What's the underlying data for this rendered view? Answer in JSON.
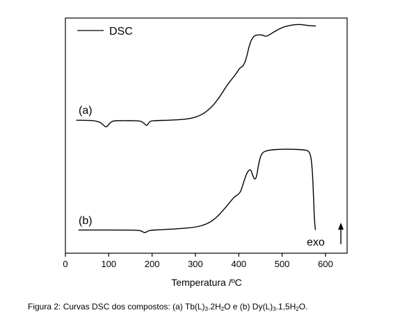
{
  "chart_data": {
    "type": "line",
    "xlabel": "Temperatura /ºC",
    "ylabel": "",
    "xlim": [
      0,
      650
    ],
    "xticks": [
      0,
      100,
      200,
      300,
      400,
      500,
      600
    ],
    "grid": false,
    "legend": {
      "position": "top-left",
      "label": "DSC"
    },
    "y_axis_ticks": "none",
    "series": [
      {
        "curve_label": "(a)",
        "color": "#000000",
        "x": [
          25,
          45,
          65,
          80,
          88,
          93,
          98,
          104,
          112,
          125,
          150,
          175,
          183,
          188,
          191,
          196,
          210,
          240,
          280,
          310,
          335,
          355,
          372,
          385,
          395,
          402,
          407,
          412,
          418,
          423,
          428,
          434,
          440,
          445,
          455,
          463,
          480,
          500,
          520,
          540,
          560,
          578
        ],
        "y": [
          0.5,
          0.5,
          0.7,
          1.5,
          3.2,
          4.4,
          3.6,
          1.6,
          0.8,
          0.75,
          0.7,
          0.9,
          2.6,
          3.6,
          2.4,
          0.9,
          0.7,
          0.45,
          0.0,
          -1.8,
          -6.0,
          -12.0,
          -18.6,
          -22.6,
          -25.6,
          -28.4,
          -29.0,
          -30.3,
          -34.2,
          -39.7,
          -43.5,
          -45.9,
          -46.7,
          -46.8,
          -46.8,
          -45.7,
          -48.3,
          -51.0,
          -52.2,
          -52.7,
          -52.0,
          -51.7
        ]
      },
      {
        "curve_label": "(b)",
        "color": "#000000",
        "x": [
          30,
          80,
          130,
          170,
          178,
          183,
          188,
          195,
          220,
          260,
          300,
          325,
          345,
          365,
          380,
          390,
          398,
          405,
          412,
          420,
          427,
          431,
          436,
          441,
          446,
          452,
          460,
          475,
          500,
          525,
          550,
          565,
          570,
          573,
          575,
          577
        ],
        "y": [
          0.3,
          0.3,
          0.3,
          0.4,
          1.5,
          2.5,
          1.5,
          0.5,
          0.0,
          -0.6,
          -1.8,
          -4.0,
          -8.0,
          -15.0,
          -21.0,
          -25.0,
          -26.5,
          -29.0,
          -37.0,
          -44.0,
          -46.0,
          -42.5,
          -37.8,
          -39.5,
          -50.4,
          -57.5,
          -59.5,
          -60.6,
          -61.0,
          -61.0,
          -60.6,
          -59.5,
          -45.0,
          -20.0,
          -5.0,
          0.3
        ]
      }
    ]
  },
  "annotation": {
    "exo_label": "exo"
  },
  "caption": {
    "parts": [
      "Figura 2: Curvas DSC dos compostos: (a) Tb(L)",
      "3",
      ".2H",
      "2",
      "O e (b) Dy(L)",
      "3",
      ".1,5H",
      "2",
      "O."
    ]
  }
}
